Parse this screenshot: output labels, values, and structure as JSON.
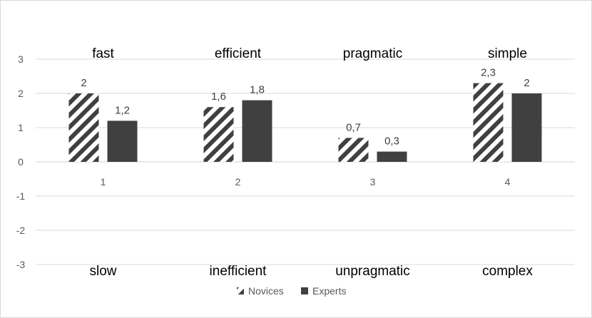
{
  "chart_data": {
    "type": "bar",
    "categories": [
      "1",
      "2",
      "3",
      "4"
    ],
    "series": [
      {
        "name": "Novices",
        "values": [
          2,
          1.6,
          0.7,
          2.3
        ],
        "pattern": "diagonal-stripes",
        "color": "#404040"
      },
      {
        "name": "Experts",
        "values": [
          1.2,
          1.8,
          0.3,
          2
        ],
        "pattern": "solid",
        "color": "#404040"
      }
    ],
    "data_labels": {
      "Novices": [
        "2",
        "1,6",
        "0,7",
        "2,3"
      ],
      "Experts": [
        "1,2",
        "1,8",
        "0,3",
        "2"
      ]
    },
    "y_ticks": [
      "3",
      "2",
      "1",
      "0",
      "-1",
      "-2",
      "-3"
    ],
    "ylim": [
      -3,
      3
    ],
    "grid": true,
    "legend_position": "bottom",
    "positive_labels": [
      "fast",
      "efficient",
      "pragmatic",
      "simple"
    ],
    "negative_labels": [
      "slow",
      "inefficient",
      "unpragmatic",
      "complex"
    ],
    "gridline_color": "#d9d9d9"
  }
}
